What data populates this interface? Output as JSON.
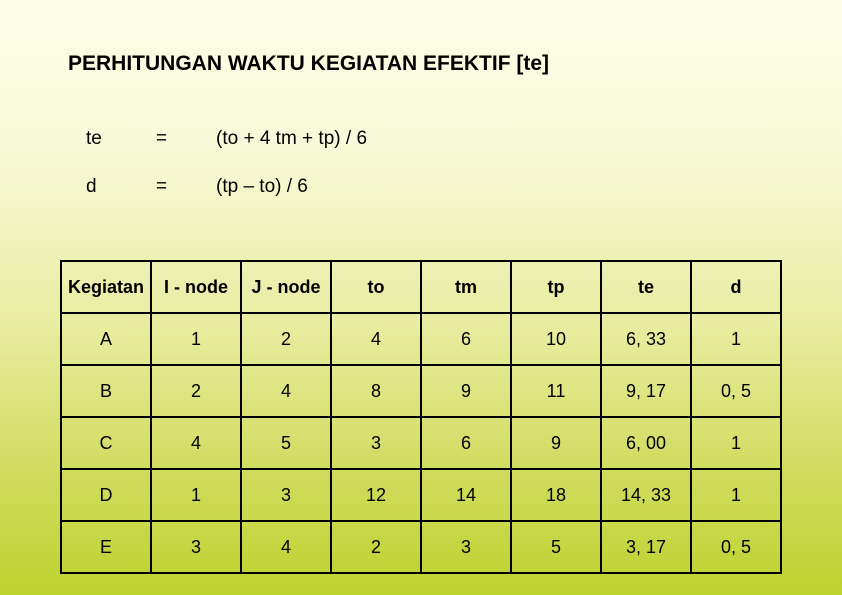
{
  "title": "PERHITUNGAN WAKTU KEGIATAN EFEKTIF [te]",
  "formulas": [
    {
      "var": "te",
      "eq": "=",
      "expr": "(to + 4 tm + tp) / 6"
    },
    {
      "var": "d",
      "eq": "=",
      "expr": "(tp – to) / 6"
    }
  ],
  "table": {
    "columns": [
      "Kegiatan",
      "I - node",
      "J - node",
      "to",
      "tm",
      "tp",
      "te",
      "d"
    ],
    "rows": [
      [
        "A",
        "1",
        "2",
        "4",
        "6",
        "10",
        "6, 33",
        "1"
      ],
      [
        "B",
        "2",
        "4",
        "8",
        "9",
        "11",
        "9, 17",
        "0, 5"
      ],
      [
        "C",
        "4",
        "5",
        "3",
        "6",
        "9",
        "6, 00",
        "1"
      ],
      [
        "D",
        "1",
        "3",
        "12",
        "14",
        "18",
        "14, 33",
        "1"
      ],
      [
        "E",
        "3",
        "4",
        "2",
        "3",
        "5",
        "3, 17",
        "0, 5"
      ]
    ],
    "col_widths_pct": [
      12.5,
      12.5,
      12.5,
      12.5,
      12.5,
      12.5,
      12.5,
      12.5
    ],
    "border_color": "#000000",
    "header_font": "Comic Sans MS",
    "cell_font": "Comic Sans MS",
    "header_fontsize": 18,
    "cell_fontsize": 18
  },
  "colors": {
    "gradient_top": "#fdfde8",
    "gradient_bottom": "#bcd22e",
    "text": "#000000"
  }
}
